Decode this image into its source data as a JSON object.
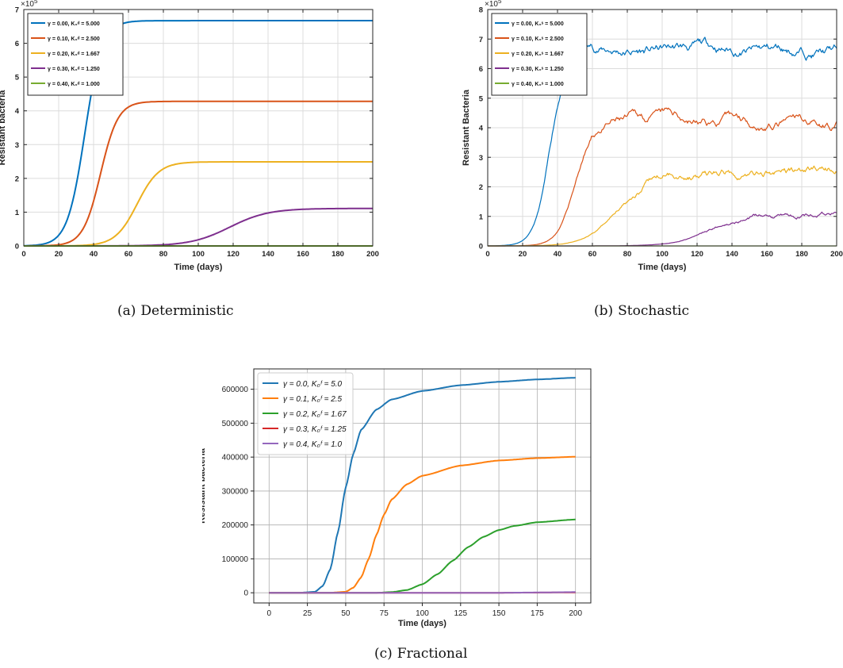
{
  "chart_data": [
    {
      "id": "a",
      "type": "line",
      "caption_tag": "(a)",
      "caption": "Deterministic",
      "xlabel": "Time (days)",
      "ylabel": "Resistant bacteria",
      "exponent_label": "×10",
      "exponent_power": "5",
      "xlim": [
        0,
        200
      ],
      "ylim": [
        0,
        7
      ],
      "xticks": [
        0,
        20,
        40,
        60,
        80,
        100,
        120,
        140,
        160,
        180,
        200
      ],
      "yticks": [
        0,
        1,
        2,
        3,
        4,
        5,
        6,
        7
      ],
      "grid": true,
      "legend_position": "top-left",
      "curve": "logistic",
      "series": [
        {
          "name": "γ = 0.00, K₀ᵈ = 5.000",
          "color": "#0072BD",
          "plateau": 6.67,
          "midpoint": 35,
          "rate": 0.2
        },
        {
          "name": "γ = 0.10, K₀ᵈ = 2.500",
          "color": "#D95319",
          "plateau": 4.28,
          "midpoint": 44,
          "rate": 0.2
        },
        {
          "name": "γ = 0.20, K₀ᵈ = 1.667",
          "color": "#EDB120",
          "plateau": 2.49,
          "midpoint": 65,
          "rate": 0.16
        },
        {
          "name": "γ = 0.30, K₀ᵈ = 1.250",
          "color": "#7E2F8E",
          "plateau": 1.11,
          "midpoint": 118,
          "rate": 0.09
        },
        {
          "name": "γ = 0.40, K₀ᵈ = 1.000",
          "color": "#77AC30",
          "plateau": 0.0,
          "midpoint": 100,
          "rate": 0.1
        }
      ]
    },
    {
      "id": "b",
      "type": "line",
      "caption_tag": "(b)",
      "caption": "Stochastic",
      "xlabel": "Time (days)",
      "ylabel": "Resistant Bacteria",
      "exponent_label": "×10",
      "exponent_power": "5",
      "xlim": [
        0,
        200
      ],
      "ylim": [
        0,
        8
      ],
      "xticks": [
        0,
        20,
        40,
        60,
        80,
        100,
        120,
        140,
        160,
        180,
        200
      ],
      "yticks": [
        0,
        1,
        2,
        3,
        4,
        5,
        6,
        7,
        8
      ],
      "grid": true,
      "legend_position": "top-left",
      "curve": "logistic-noisy",
      "series": [
        {
          "name": "γ = 0.00, K₀ˢ = 5.000",
          "color": "#0072BD",
          "plateau": 6.6,
          "midpoint": 36,
          "rate": 0.22,
          "noise": 0.45,
          "seed": 11
        },
        {
          "name": "γ = 0.10, K₀ˢ = 2.500",
          "color": "#D95319",
          "plateau": 4.15,
          "midpoint": 50,
          "rate": 0.2,
          "noise": 0.4,
          "seed": 23
        },
        {
          "name": "γ = 0.20, K₀ˢ = 1.667",
          "color": "#EDB120",
          "plateau": 2.5,
          "midpoint": 75,
          "rate": 0.11,
          "noise": 0.35,
          "seed": 37
        },
        {
          "name": "γ = 0.30, K₀ˢ = 1.250",
          "color": "#7E2F8E",
          "plateau": 1.1,
          "midpoint": 128,
          "rate": 0.1,
          "noise": 0.22,
          "seed": 53
        },
        {
          "name": "γ = 0.40, K₀ˢ = 1.000",
          "color": "#77AC30",
          "plateau": 0.0,
          "midpoint": 100,
          "rate": 0.1,
          "noise": 0.0,
          "seed": 71
        }
      ]
    },
    {
      "id": "c",
      "type": "line",
      "caption_tag": "(c)",
      "caption": "Fractional",
      "xlabel": "Time (days)",
      "ylabel": "Resistant bacteria",
      "xlim": [
        -10,
        210
      ],
      "ylim": [
        -30000,
        660000
      ],
      "xticks": [
        0,
        25,
        50,
        75,
        100,
        125,
        150,
        175,
        200
      ],
      "yticks": [
        0,
        100000,
        200000,
        300000,
        400000,
        500000,
        600000
      ],
      "grid": true,
      "legend_position": "top-left",
      "curve": "sigmoid-saturating",
      "series": [
        {
          "name": "γ = 0.0, K₀ᶠ = 5.0",
          "color": "#1f77b4",
          "points": [
            [
              0,
              0
            ],
            [
              20,
              0
            ],
            [
              30,
              3000
            ],
            [
              35,
              20000
            ],
            [
              40,
              70000
            ],
            [
              45,
              180000
            ],
            [
              50,
              310000
            ],
            [
              55,
              410000
            ],
            [
              60,
              480000
            ],
            [
              70,
              540000
            ],
            [
              80,
              570000
            ],
            [
              100,
              595000
            ],
            [
              125,
              612000
            ],
            [
              150,
              622000
            ],
            [
              175,
              629000
            ],
            [
              200,
              634000
            ]
          ]
        },
        {
          "name": "γ = 0.1, K₀ᶠ = 2.5",
          "color": "#ff7f0e",
          "points": [
            [
              0,
              0
            ],
            [
              40,
              0
            ],
            [
              50,
              3000
            ],
            [
              55,
              15000
            ],
            [
              60,
              45000
            ],
            [
              65,
              100000
            ],
            [
              70,
              170000
            ],
            [
              75,
              230000
            ],
            [
              80,
              275000
            ],
            [
              90,
              320000
            ],
            [
              100,
              345000
            ],
            [
              125,
              375000
            ],
            [
              150,
              390000
            ],
            [
              175,
              397000
            ],
            [
              200,
              401000
            ]
          ]
        },
        {
          "name": "γ = 0.2, K₀ᶠ = 1.67",
          "color": "#2ca02c",
          "points": [
            [
              0,
              0
            ],
            [
              70,
              0
            ],
            [
              80,
              2000
            ],
            [
              90,
              8000
            ],
            [
              100,
              25000
            ],
            [
              110,
              55000
            ],
            [
              120,
              95000
            ],
            [
              130,
              135000
            ],
            [
              140,
              165000
            ],
            [
              150,
              185000
            ],
            [
              160,
              197000
            ],
            [
              175,
              208000
            ],
            [
              200,
              216000
            ]
          ]
        },
        {
          "name": "γ = 0.3, K₀ᶠ = 1.25",
          "color": "#d62728",
          "points": [
            [
              0,
              0
            ],
            [
              150,
              0
            ],
            [
              175,
              500
            ],
            [
              200,
              1200
            ]
          ]
        },
        {
          "name": "γ = 0.4, K₀ᶠ = 1.0",
          "color": "#9467bd",
          "points": [
            [
              0,
              0
            ],
            [
              150,
              0
            ],
            [
              175,
              800
            ],
            [
              200,
              2000
            ]
          ]
        }
      ]
    }
  ]
}
